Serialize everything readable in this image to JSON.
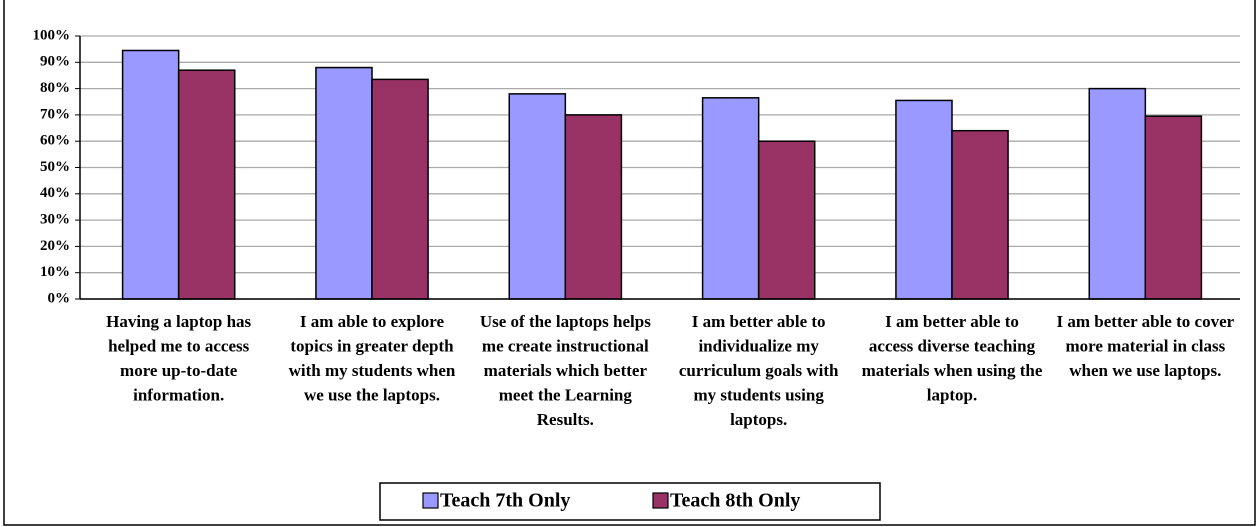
{
  "chart_data": {
    "type": "bar",
    "categories": [
      "Having a laptop has helped me to access more up-to-date information.",
      "I am able to explore topics in greater depth with my students when we use the laptops.",
      "Use of the laptops helps me create instructional materials which better meet the Learning Results.",
      "I am better able to individualize my curriculum goals with my students using laptops.",
      "I am better able to access diverse teaching materials when using the laptop.",
      "I am better able to cover more material in class when we use laptops."
    ],
    "series": [
      {
        "name": "Teach 7th Only",
        "color": "#9999ff",
        "values": [
          94.5,
          88,
          78,
          76.5,
          75.5,
          80
        ]
      },
      {
        "name": "Teach 8th Only",
        "color": "#993366",
        "values": [
          87,
          83.5,
          70,
          60,
          64,
          69.5
        ]
      }
    ],
    "ylim": [
      0,
      100
    ],
    "yticks": [
      {
        "value": 0,
        "label": "0%"
      },
      {
        "value": 10,
        "label": "10%"
      },
      {
        "value": 20,
        "label": "20%"
      },
      {
        "value": 30,
        "label": "30%"
      },
      {
        "value": 40,
        "label": "40%"
      },
      {
        "value": 50,
        "label": "50%"
      },
      {
        "value": 60,
        "label": "60%"
      },
      {
        "value": 70,
        "label": "70%"
      },
      {
        "value": 80,
        "label": "80%"
      },
      {
        "value": 90,
        "label": "90%"
      },
      {
        "value": 100,
        "label": "100%"
      }
    ],
    "grid": true,
    "legend": "bottom"
  }
}
